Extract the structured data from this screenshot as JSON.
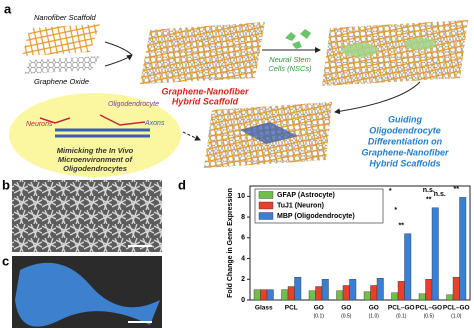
{
  "panel_labels": [
    "a",
    "b",
    "c",
    "d"
  ],
  "panel_a": {
    "scaffold_label": "Nanofiber Scaffold",
    "graphene_label": "Graphene Oxide",
    "hybrid_label": [
      "Graphene-Nanofiber",
      "Hybrid Scaffold"
    ],
    "nsc_label": [
      "Neural Stem",
      "Cells (NSCs)"
    ],
    "guiding_label": [
      "Guiding",
      "Oligodendrocyte",
      "Differentiation on",
      "Graphene-Nanofiber",
      "Hybrid Scaffolds"
    ],
    "oligodendrocyte_label": "Oligodendrocyte",
    "neurons_label": "Neurons",
    "axons_label": "Axons",
    "mimic_label": [
      "Mimicking the In Vivo",
      "Microenvironment of",
      "Oligodendrocytes"
    ]
  },
  "chart_data": {
    "type": "bar",
    "y_label": "Fold Change in Gene Expression",
    "categories": [
      "Glass",
      "PCL",
      "GO",
      "GO",
      "GO",
      "PCL–GO",
      "PCL–GO",
      "PCL–GO"
    ],
    "category_notes": [
      null,
      null,
      "(0.1)",
      "(0.5)",
      "(1.0)",
      "(0.1)",
      "(0.5)",
      "(1.0)"
    ],
    "series": [
      {
        "name": "GFAP (Astrocyte)",
        "color": "#6fc04a",
        "values": [
          1.0,
          1.0,
          0.9,
          0.9,
          0.8,
          0.7,
          0.6,
          0.5
        ]
      },
      {
        "name": "TuJ1 (Neuron)",
        "color": "#e8402a",
        "values": [
          1.0,
          1.3,
          1.3,
          1.4,
          1.4,
          1.8,
          2.0,
          2.2
        ]
      },
      {
        "name": "MBP (Oligodendrocyte)",
        "color": "#3a7fd5",
        "values": [
          1.0,
          2.2,
          2.0,
          2.0,
          2.1,
          6.4,
          8.9,
          9.9
        ]
      }
    ],
    "ylim": [
      0,
      11
    ],
    "yticks": [
      0,
      2,
      4,
      6,
      8,
      10
    ],
    "annotations": [
      "**",
      "**",
      "**",
      "*",
      "*",
      "n.s.",
      "n.s."
    ]
  }
}
